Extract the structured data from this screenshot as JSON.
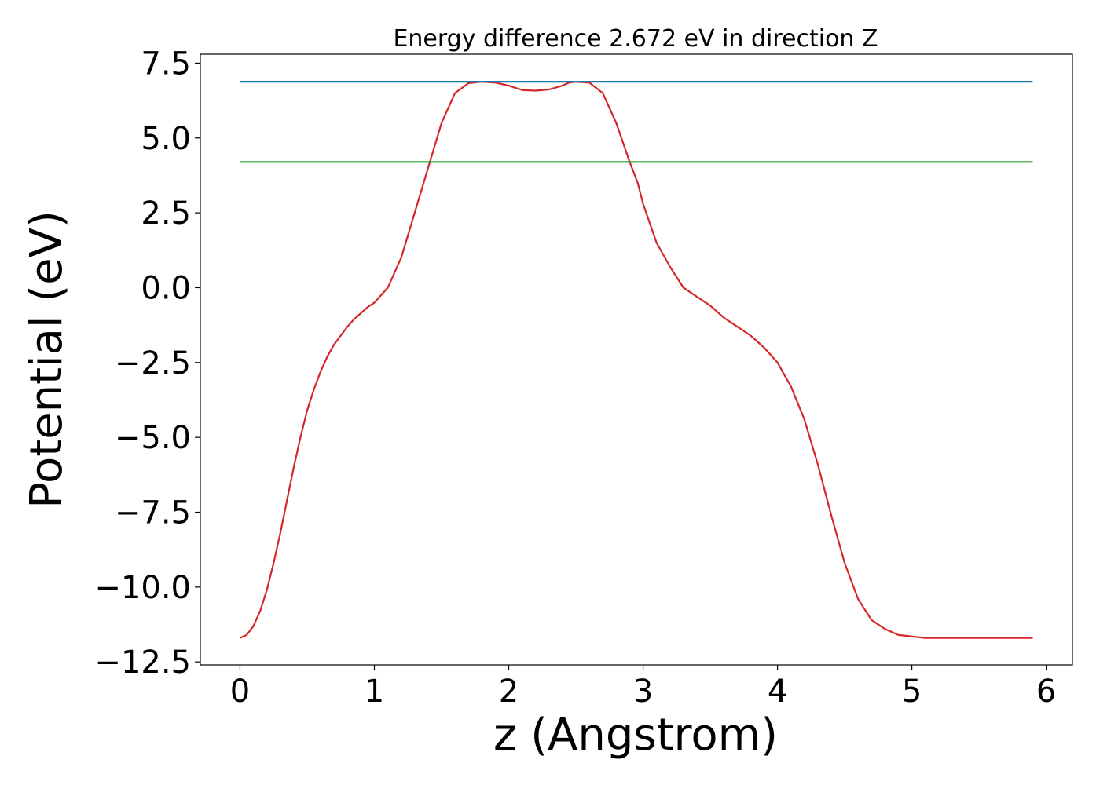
{
  "chart_data": {
    "type": "line",
    "title": "Energy difference 2.672 eV in direction Z",
    "xlabel": "z (Angstrom)",
    "ylabel": "Potential (eV)",
    "xlim": [
      -0.295,
      6.195
    ],
    "ylim": [
      -12.6,
      7.8
    ],
    "xticks": [
      0,
      1,
      2,
      3,
      4,
      5,
      6
    ],
    "xtick_labels": [
      "0",
      "1",
      "2",
      "3",
      "4",
      "5",
      "6"
    ],
    "yticks": [
      7.5,
      5.0,
      2.5,
      0.0,
      -2.5,
      -5.0,
      -7.5,
      -10.0,
      -12.5
    ],
    "ytick_labels": [
      "7.5",
      "5.0",
      "2.5",
      "0.0",
      "−2.5",
      "−5.0",
      "−7.5",
      "−10.0",
      "−12.5"
    ],
    "grid": false,
    "legend": "none",
    "series": [
      {
        "color": "#d62728",
        "x": [
          0.0,
          0.05,
          0.1,
          0.15,
          0.2,
          0.25,
          0.3,
          0.35,
          0.4,
          0.45,
          0.5,
          0.55,
          0.6,
          0.65,
          0.7,
          0.75,
          0.8,
          0.85,
          0.9,
          0.95,
          1.0,
          1.1,
          1.2,
          1.3,
          1.4,
          1.5,
          1.6,
          1.7,
          1.8,
          1.9,
          2.0,
          2.1,
          2.2,
          2.3,
          2.4,
          2.45,
          2.5,
          2.6,
          2.7,
          2.8,
          2.9,
          2.96,
          3.0,
          3.1,
          3.2,
          3.3,
          3.4,
          3.5,
          3.55,
          3.6,
          3.7,
          3.8,
          3.9,
          4.0,
          4.1,
          4.2,
          4.3,
          4.4,
          4.5,
          4.6,
          4.7,
          4.8,
          4.9,
          5.0,
          5.1,
          5.2,
          5.3,
          5.4,
          5.5,
          5.6,
          5.7,
          5.75,
          5.8,
          5.85,
          5.9
        ],
        "y": [
          -11.7,
          -11.6,
          -11.3,
          -10.8,
          -10.1,
          -9.2,
          -8.2,
          -7.1,
          -6.0,
          -5.0,
          -4.1,
          -3.4,
          -2.8,
          -2.3,
          -1.9,
          -1.6,
          -1.3,
          -1.05,
          -0.85,
          -0.65,
          -0.5,
          0.0,
          1.0,
          2.5,
          4.0,
          5.5,
          6.5,
          6.83,
          6.88,
          6.85,
          6.75,
          6.6,
          6.58,
          6.62,
          6.75,
          6.85,
          6.88,
          6.85,
          6.5,
          5.5,
          4.2,
          3.5,
          2.8,
          1.5,
          0.7,
          0.0,
          -0.3,
          -0.6,
          -0.8,
          -1.0,
          -1.3,
          -1.6,
          -2.0,
          -2.5,
          -3.3,
          -4.4,
          -5.9,
          -7.6,
          -9.2,
          -10.4,
          -11.1,
          -11.4,
          -11.6,
          -11.65,
          -11.7,
          -11.7,
          -11.7,
          -11.7,
          -11.7,
          -11.7,
          -11.7,
          -11.7,
          -11.7,
          -11.7,
          -11.7
        ]
      },
      {
        "color": "#1f77b4",
        "x": [
          0.0,
          5.9
        ],
        "y": [
          6.88,
          6.88
        ]
      },
      {
        "color": "#2ca02c",
        "x": [
          0.0,
          5.9
        ],
        "y": [
          4.2,
          4.2
        ]
      }
    ]
  }
}
